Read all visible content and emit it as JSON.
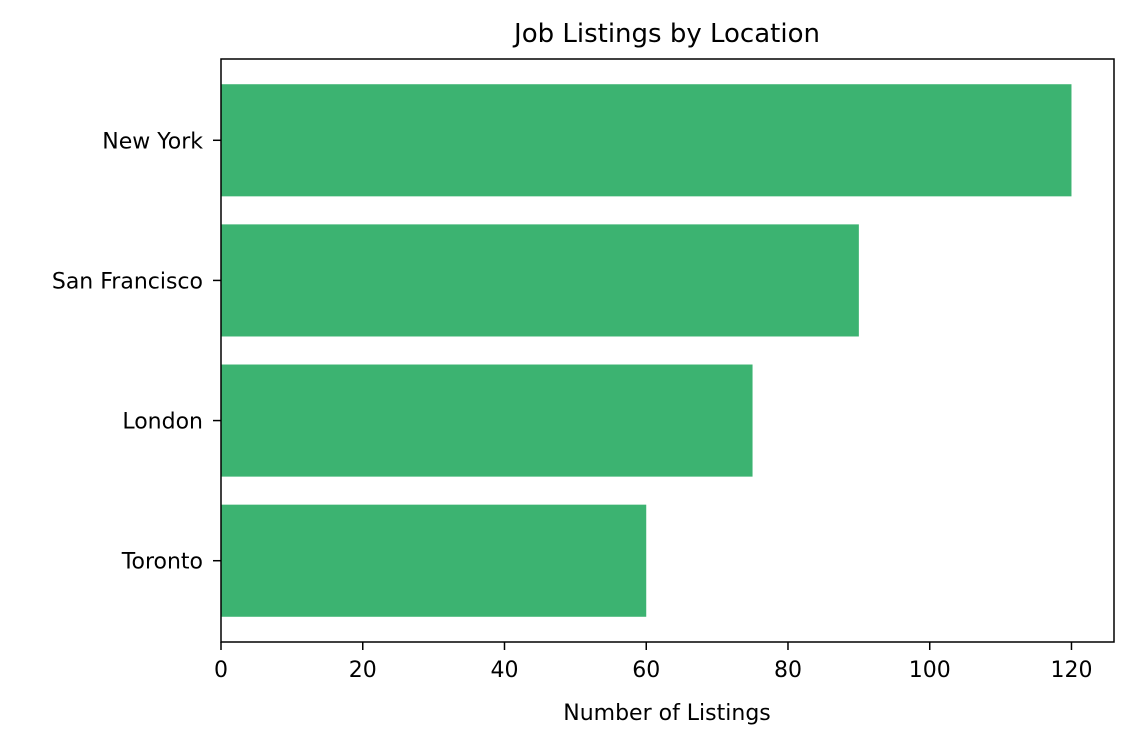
{
  "chart_data": {
    "type": "bar",
    "orientation": "horizontal",
    "title": "Job Listings by Location",
    "xlabel": "Number of Listings",
    "ylabel": "",
    "categories": [
      "New York",
      "San Francisco",
      "London",
      "Toronto"
    ],
    "values": [
      120,
      90,
      75,
      60
    ],
    "xlim": [
      0,
      126
    ],
    "xticks": [
      0,
      20,
      40,
      60,
      80,
      100,
      120
    ],
    "bar_color": "#3cb371",
    "grid": false,
    "legend": "none"
  }
}
